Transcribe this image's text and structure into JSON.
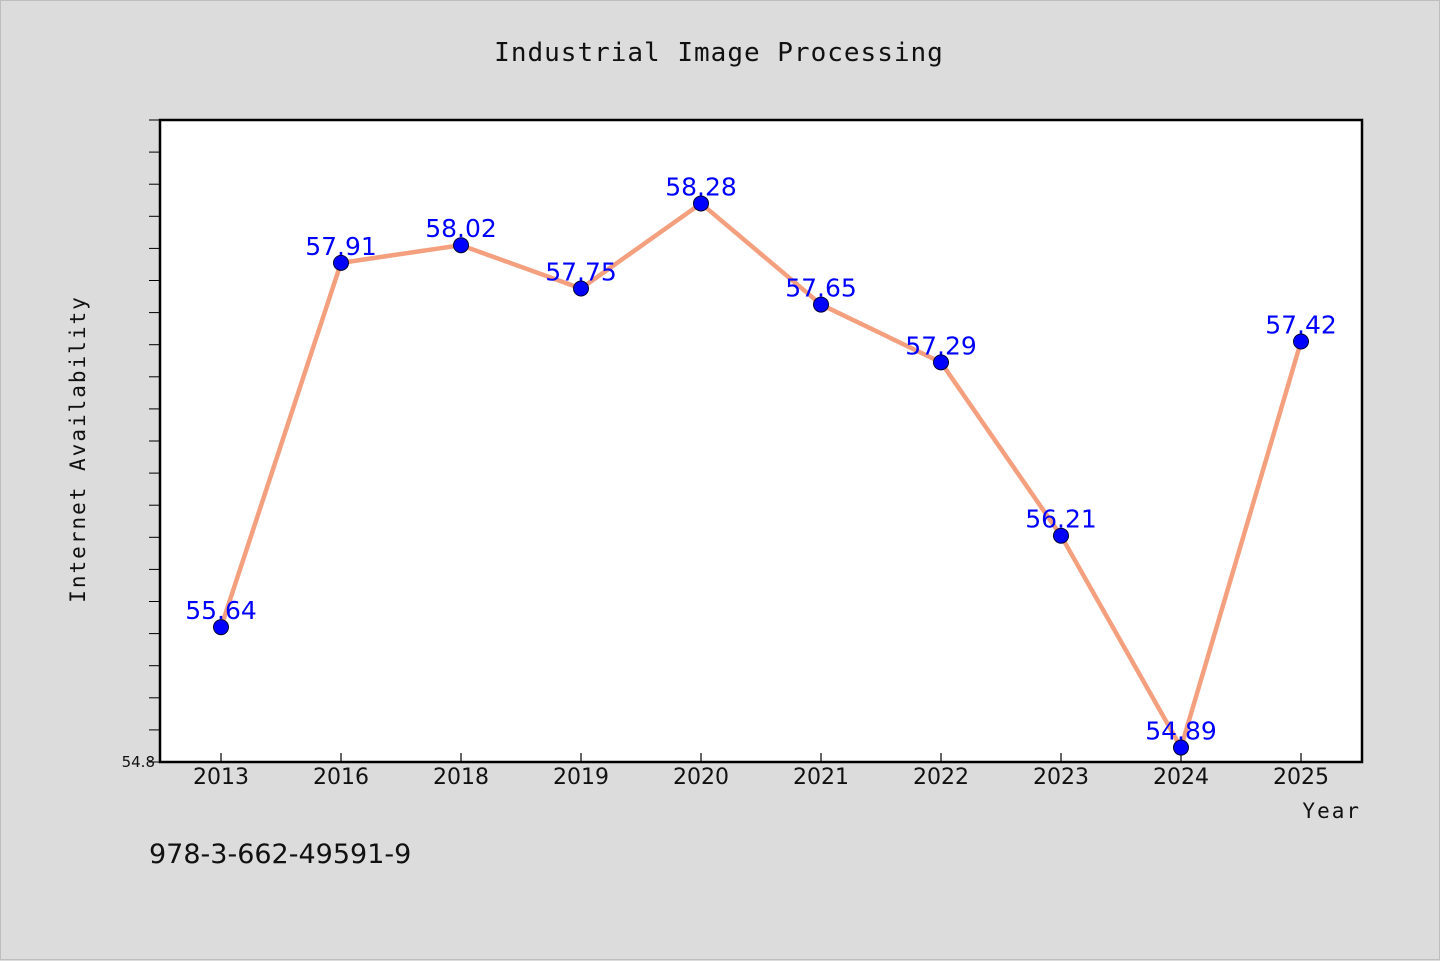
{
  "footnote": "978-3-662-49591-9",
  "colors": {
    "line": "#f4a07f",
    "marker": "#0000ff",
    "label": "#0000ff",
    "plot_bg": "#ffffff",
    "figure_bg": "#dcdcdc"
  },
  "chart_data": {
    "type": "line",
    "title": "Industrial Image Processing",
    "xlabel": "Year",
    "ylabel": "Internet Availability",
    "categories": [
      "2013",
      "2016",
      "2018",
      "2019",
      "2020",
      "2021",
      "2022",
      "2023",
      "2024",
      "2025"
    ],
    "values": [
      55.64,
      57.91,
      58.02,
      57.75,
      58.28,
      57.65,
      57.29,
      56.21,
      54.89,
      57.42
    ],
    "value_labels": [
      "55.64",
      "57.91",
      "58.02",
      "57.75",
      "58.28",
      "57.65",
      "57.29",
      "56.21",
      "54.89",
      "57.42"
    ],
    "ylim": [
      54.8,
      58.8
    ],
    "y_tick_labels": [
      "54.8"
    ],
    "y_minor_tick_step": 0.2,
    "grid": false,
    "legend": "none"
  }
}
